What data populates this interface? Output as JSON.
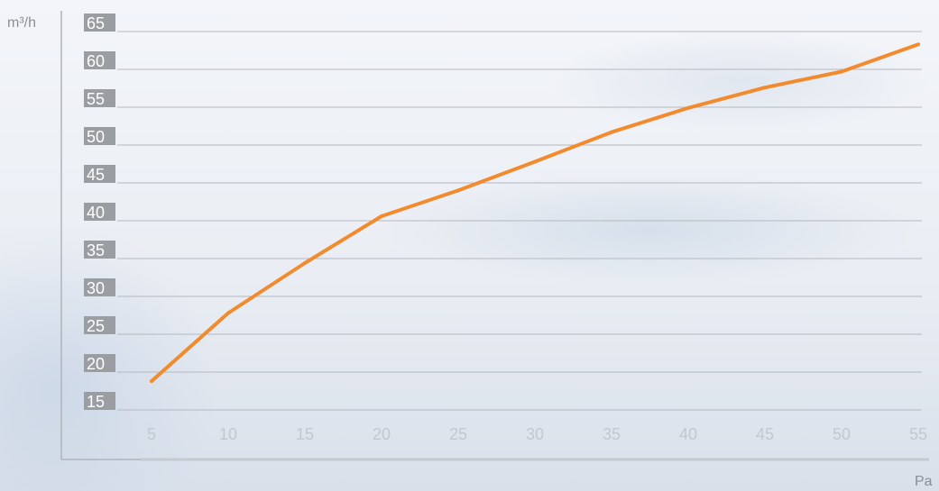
{
  "chart_data": {
    "type": "line",
    "title": "",
    "xlabel": "Pa",
    "ylabel": "m³/h",
    "x": [
      5,
      10,
      15,
      20,
      25,
      30,
      35,
      40,
      45,
      50,
      55
    ],
    "x_ticks": [
      "5",
      "10",
      "15",
      "20",
      "25",
      "30",
      "35",
      "40",
      "45",
      "50",
      "55"
    ],
    "y_ticks": [
      "15",
      "20",
      "25",
      "30",
      "35",
      "40",
      "45",
      "50",
      "55",
      "60",
      "65"
    ],
    "xlim": [
      5,
      55
    ],
    "ylim": [
      15,
      65
    ],
    "grid": true,
    "series": [
      {
        "values": [
          18.8,
          27.8,
          34.4,
          40.6,
          44.0,
          47.8,
          51.7,
          54.9,
          57.6,
          59.7,
          63.3
        ]
      }
    ],
    "colors": {
      "line": "#f28a2e",
      "tick_box": "#9a9da2",
      "grid": "#b4b8be",
      "axis": "#b0b4ba"
    }
  }
}
